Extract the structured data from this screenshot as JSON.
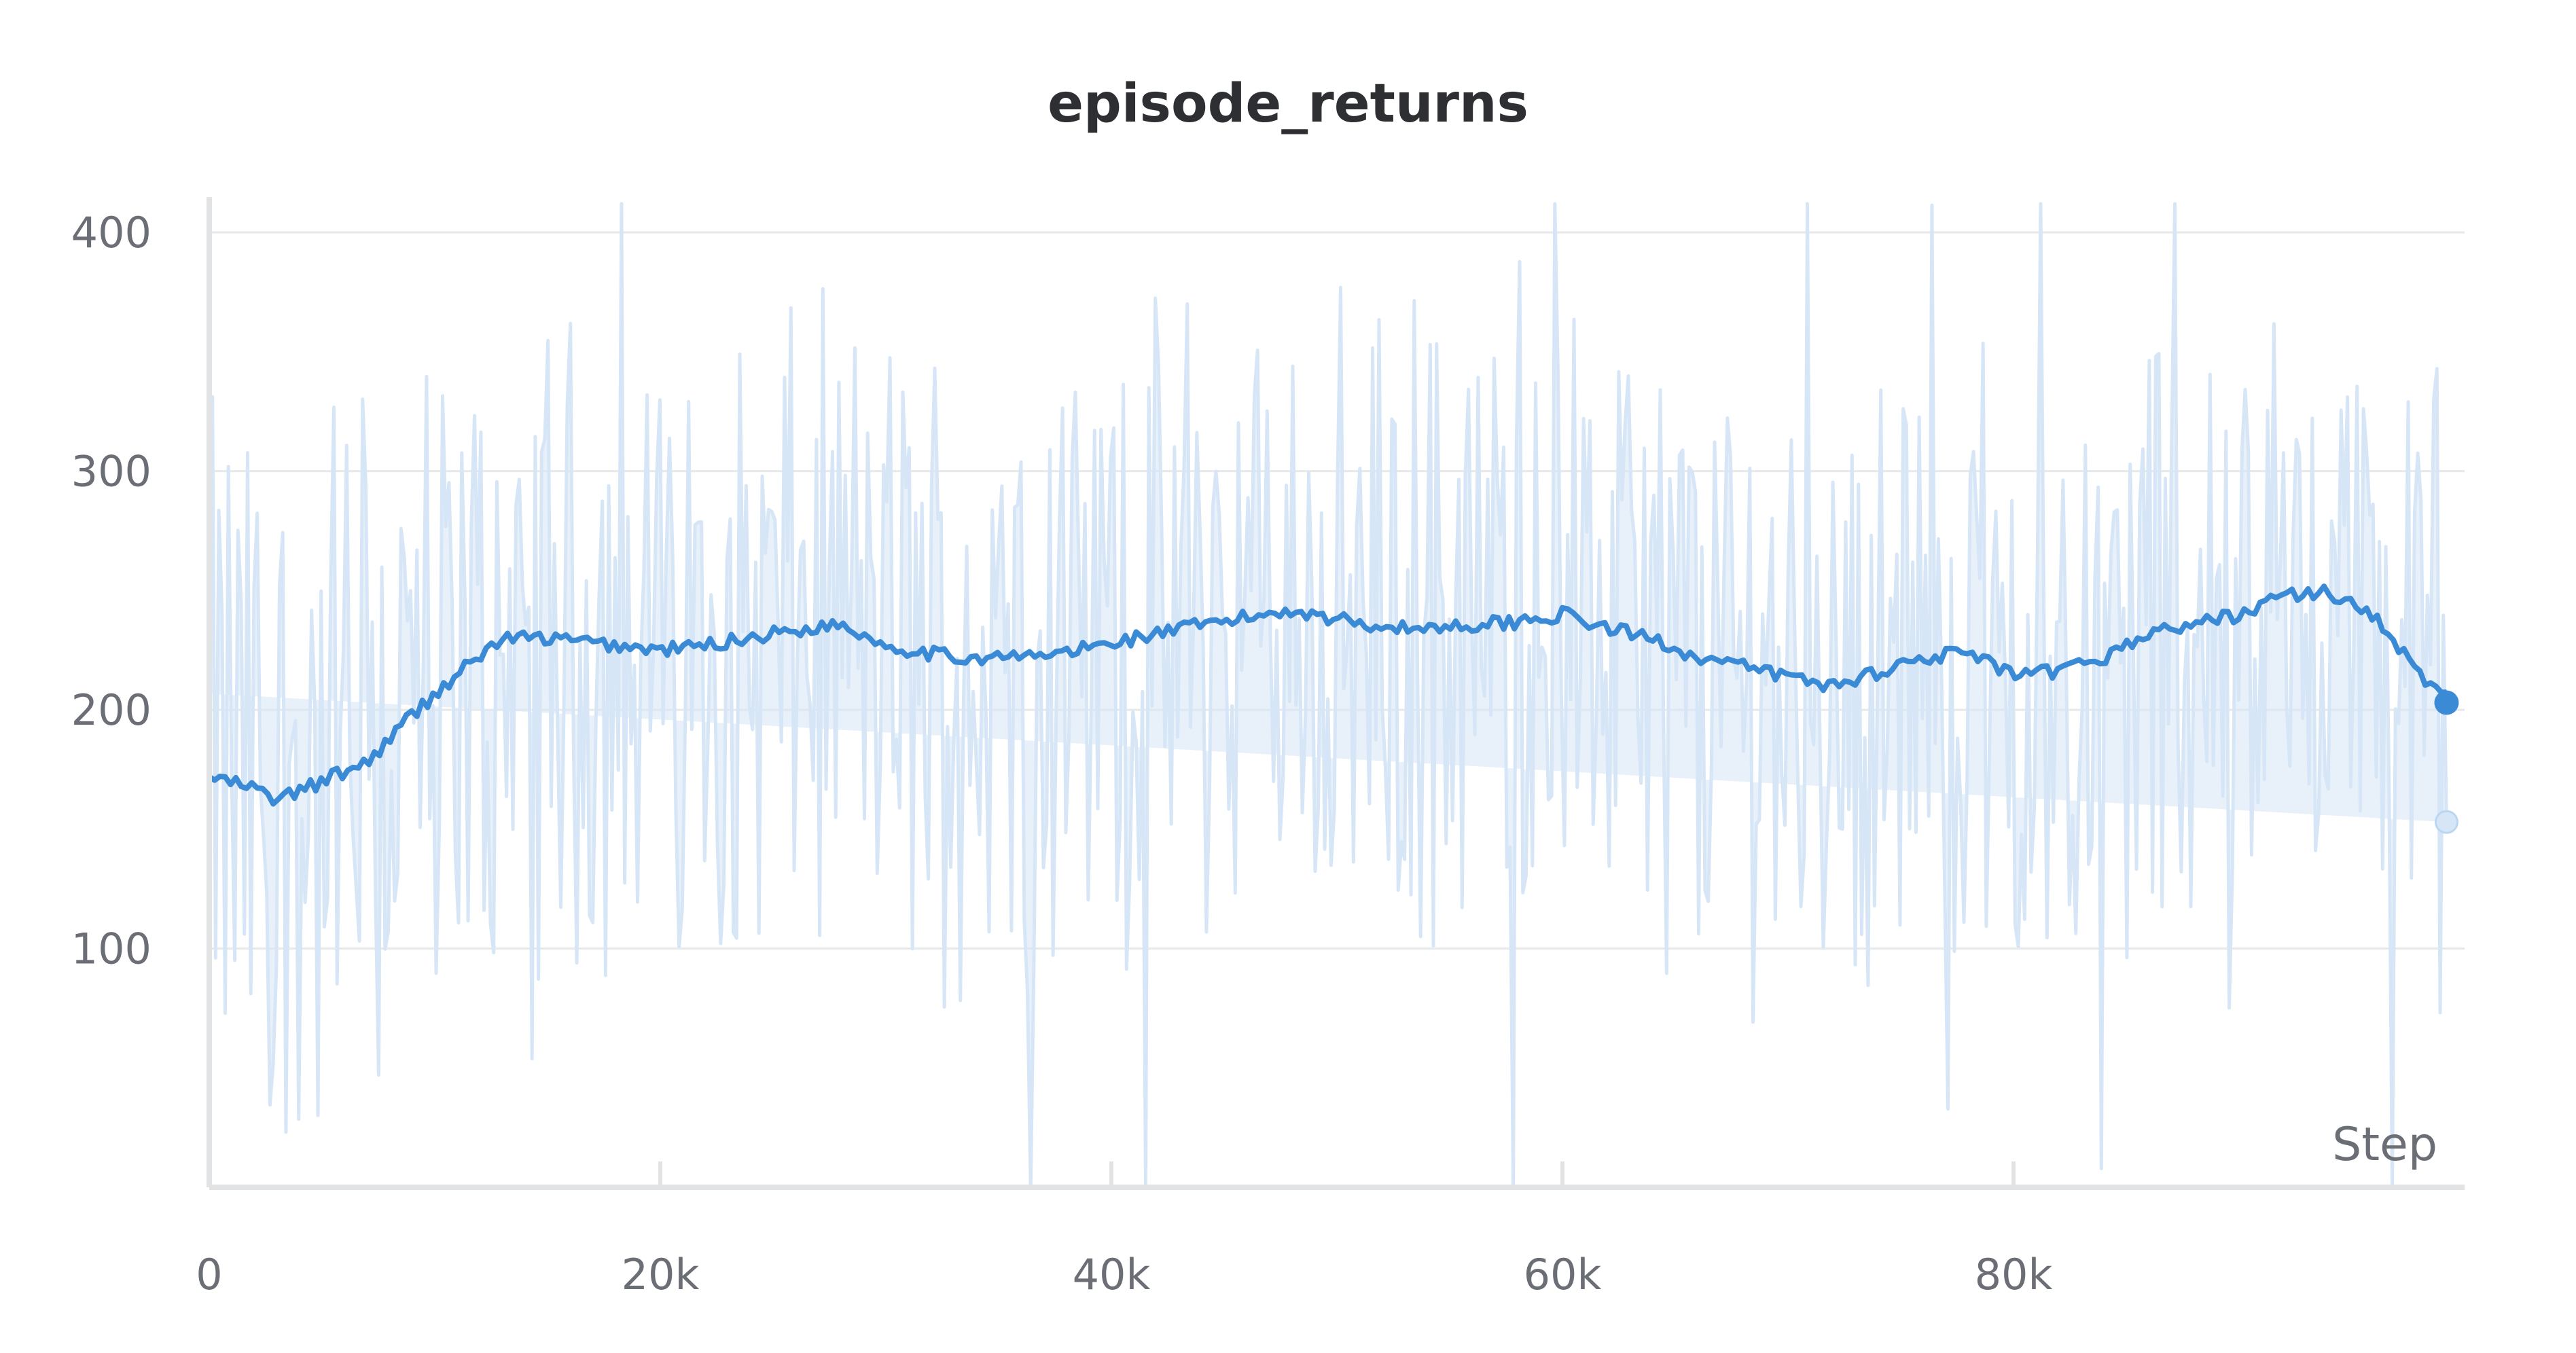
{
  "chart_data": {
    "type": "line",
    "title": "episode_returns",
    "xlabel": "Step",
    "ylabel": "",
    "xlim": [
      0,
      100000
    ],
    "ylim": [
      0,
      412
    ],
    "x_ticks": [
      0,
      20000,
      40000,
      60000,
      80000
    ],
    "x_tick_labels": [
      "0",
      "20k",
      "40k",
      "60k",
      "80k"
    ],
    "y_ticks": [
      100,
      200,
      300,
      400
    ],
    "y_tick_labels": [
      "100",
      "200",
      "300",
      "400"
    ],
    "grid": true,
    "legend": "none",
    "colors": {
      "raw": "#d6e6f6",
      "smoothed": "#3b8ad6",
      "grid": "#e7e8ea",
      "axis": "#e2e3e5"
    },
    "raw_series": {
      "points": 700,
      "final_value": 153,
      "min": 0,
      "max": 412
    },
    "smoothed_series": {
      "x": [
        0,
        2000,
        3000,
        5000,
        7000,
        9000,
        11000,
        13000,
        15000,
        17000,
        20000,
        22000,
        25000,
        28000,
        30000,
        33000,
        36000,
        38000,
        40000,
        42000,
        45000,
        48000,
        50000,
        53000,
        55000,
        58000,
        60000,
        62000,
        64000,
        66000,
        68000,
        70000,
        72000,
        74000,
        76000,
        78000,
        80000,
        82000,
        84000,
        86000,
        88000,
        90000,
        92000,
        94000,
        96000,
        98000,
        100000
      ],
      "y": [
        172,
        167,
        162,
        170,
        178,
        198,
        215,
        230,
        230,
        228,
        225,
        227,
        232,
        236,
        227,
        222,
        222,
        224,
        228,
        232,
        237,
        242,
        238,
        234,
        235,
        237,
        240,
        234,
        230,
        222,
        218,
        214,
        210,
        216,
        222,
        224,
        214,
        216,
        222,
        232,
        236,
        240,
        248,
        249,
        240,
        214,
        203
      ]
    }
  }
}
